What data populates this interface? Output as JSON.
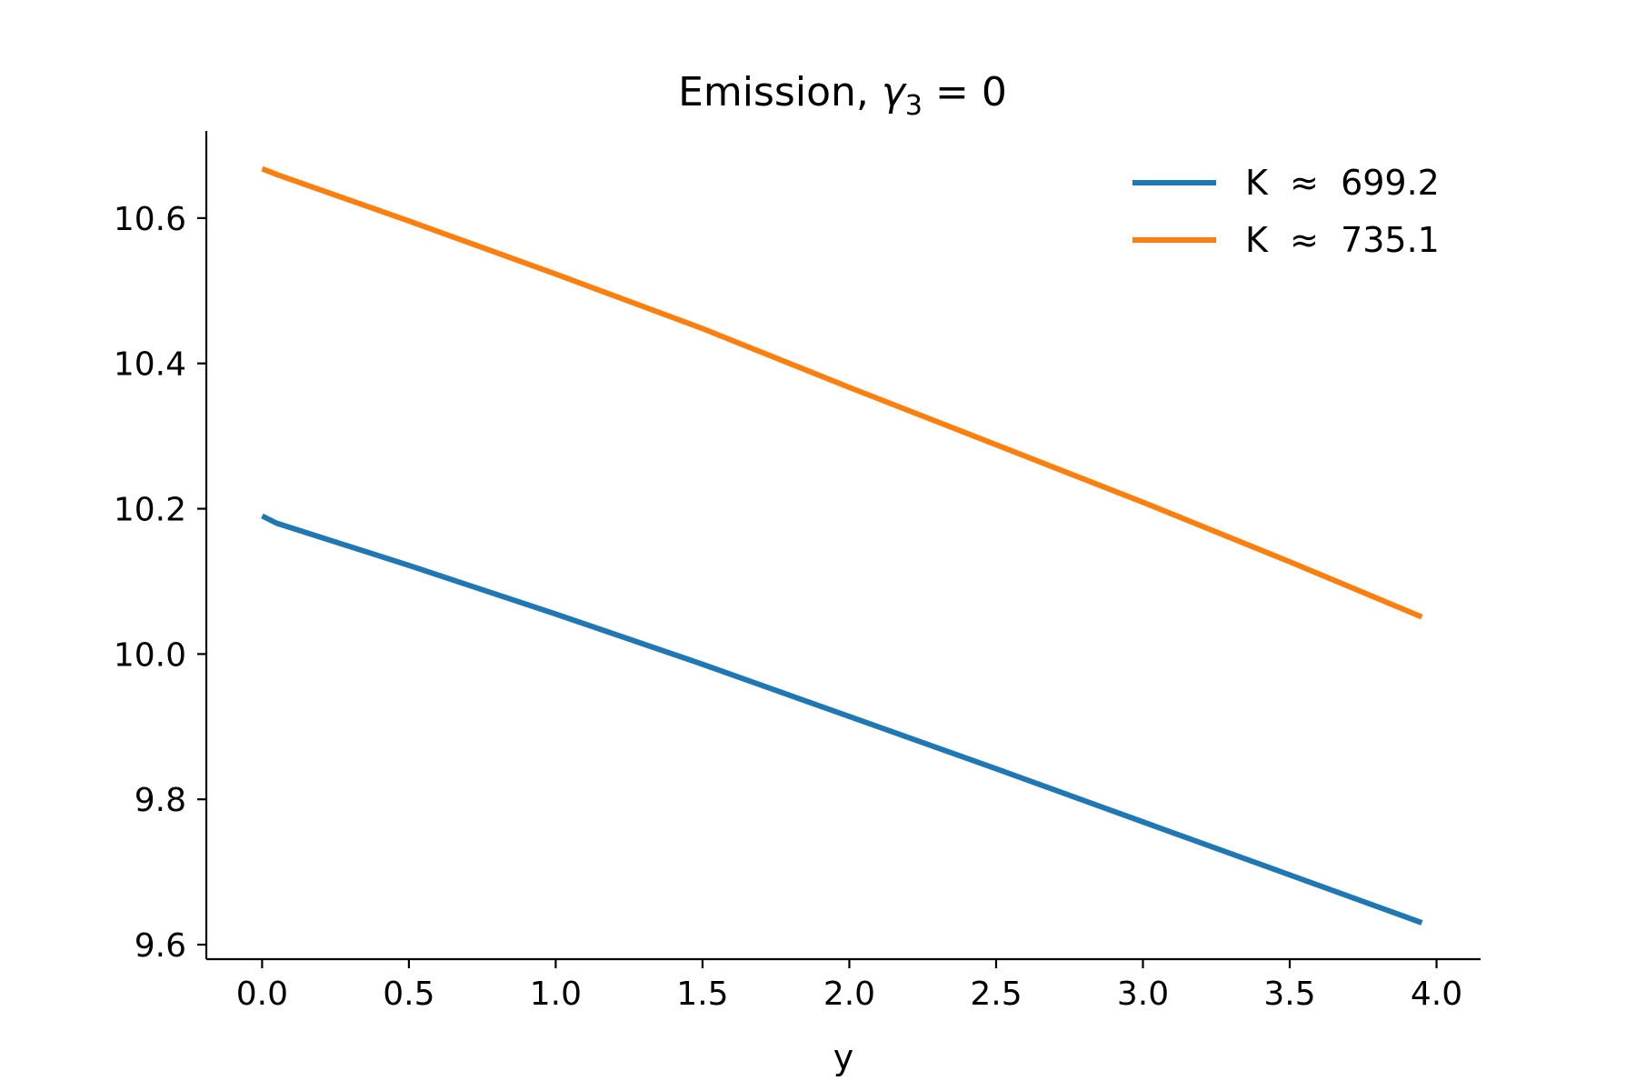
{
  "chart_data": {
    "type": "line",
    "title": {
      "main": "Emission, ",
      "symbol": "γ",
      "subscript": "3",
      "rest": " = 0"
    },
    "xlabel": "y",
    "ylabel": "",
    "xlim": [
      -0.19,
      4.15
    ],
    "ylim": [
      9.58,
      10.72
    ],
    "xticks": [
      0.0,
      0.5,
      1.0,
      1.5,
      2.0,
      2.5,
      3.0,
      3.5,
      4.0
    ],
    "xtick_labels": [
      "0.0",
      "0.5",
      "1.0",
      "1.5",
      "2.0",
      "2.5",
      "3.0",
      "3.5",
      "4.0"
    ],
    "yticks": [
      9.6,
      9.8,
      10.0,
      10.2,
      10.4,
      10.6
    ],
    "ytick_labels": [
      "9.6",
      "9.8",
      "10.0",
      "10.2",
      "10.4",
      "10.6"
    ],
    "grid": false,
    "legend_position": "top-right",
    "series": [
      {
        "name": "K  ≈  699.2",
        "color": "#1f77b4",
        "x": [
          0.0,
          0.05,
          0.5,
          1.0,
          1.5,
          2.0,
          2.5,
          3.0,
          3.5,
          3.95
        ],
        "y": [
          10.19,
          10.18,
          10.122,
          10.055,
          9.986,
          9.914,
          9.842,
          9.769,
          9.696,
          9.63
        ]
      },
      {
        "name": "K  ≈  735.1",
        "color": "#ff7f0e",
        "x": [
          0.0,
          0.05,
          0.5,
          1.0,
          1.5,
          2.0,
          2.5,
          3.0,
          3.5,
          3.95
        ],
        "y": [
          10.668,
          10.66,
          10.596,
          10.523,
          10.448,
          10.367,
          10.288,
          10.209,
          10.127,
          10.051
        ]
      }
    ]
  }
}
